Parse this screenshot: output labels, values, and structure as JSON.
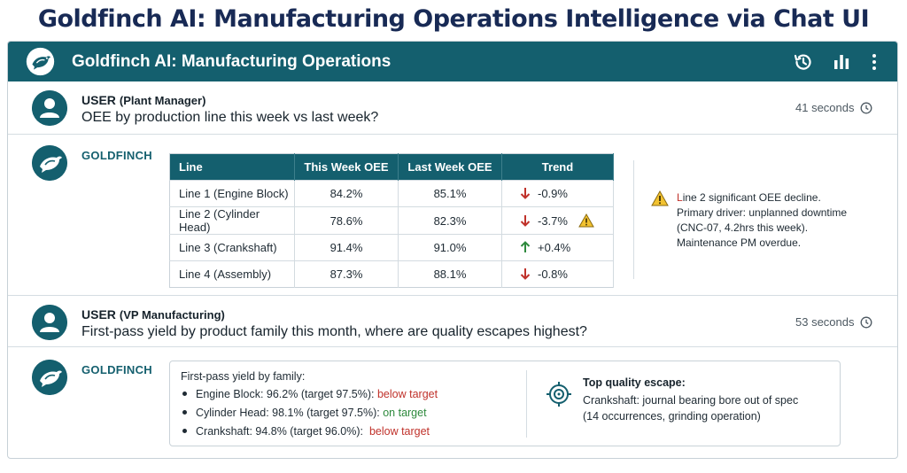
{
  "page": {
    "heading": "Goldfinch AI: Manufacturing Operations Intelligence via Chat UI"
  },
  "app": {
    "title": "Goldfinch AI: Manufacturing Operations",
    "toolbar_icons": [
      "history-icon",
      "bar-chart-icon",
      "more-vertical-icon"
    ],
    "accent_color": "#145f6e"
  },
  "conversation": {
    "msg1": {
      "role": "USER",
      "role_detail": "(Plant Manager)",
      "text": "OEE by production line this week vs last week?",
      "time": "41 seconds"
    },
    "reply1": {
      "assistant_name": "GOLDFINCH",
      "table": {
        "headers": [
          "Line",
          "This Week OEE",
          "Last Week OEE",
          "Trend"
        ],
        "rows": [
          {
            "line": "Line 1 (Engine Block)",
            "this_week": "84.2%",
            "last_week": "85.1%",
            "trend": "-0.9%",
            "direction": "down"
          },
          {
            "line": "Line 2 (Cylinder Head)",
            "this_week": "78.6%",
            "last_week": "82.3%",
            "trend": "-3.7%",
            "direction": "down",
            "warning": true
          },
          {
            "line": "Line 3 (Crankshaft)",
            "this_week": "91.4%",
            "last_week": "91.0%",
            "trend": "+0.4%",
            "direction": "up"
          },
          {
            "line": "Line 4 (Assembly)",
            "this_week": "87.3%",
            "last_week": "88.1%",
            "trend": "-0.8%",
            "direction": "down"
          }
        ]
      },
      "alert": {
        "highlight": "L",
        "line1_rest": "ine 2 significant OEE decline.",
        "line2": "Primary driver: unplanned downtime",
        "line3": "(CNC-07, 4.2hrs this week).",
        "line4": "Maintenance PM overdue."
      }
    },
    "msg2": {
      "role": "USER",
      "role_detail": "(VP Manufacturing)",
      "text": "First-pass yield by product family this month, where are quality escapes highest?",
      "time": "53 seconds"
    },
    "reply2": {
      "assistant_name": "GOLDFINCH",
      "heading": "First-pass yield by family:",
      "items": [
        {
          "label": "Engine Block: 96.2% (target 97.5%): ",
          "status": "below target",
          "status_type": "bad"
        },
        {
          "label": "Cylinder Head: 98.1% (target 97.5%): ",
          "status": "on target",
          "status_type": "good"
        },
        {
          "label": "Crankshaft: 94.8% (target 96.0%):  ",
          "status": "below target",
          "status_type": "bad"
        }
      ],
      "escape_title": "Top quality escape:",
      "escape_line1": "Crankshaft: journal bearing bore out of spec",
      "escape_line2": "(14 occurrences, grinding operation)"
    }
  },
  "colors": {
    "down": "#c0322b",
    "up": "#2e8a3d",
    "warning": "#e0b020"
  }
}
